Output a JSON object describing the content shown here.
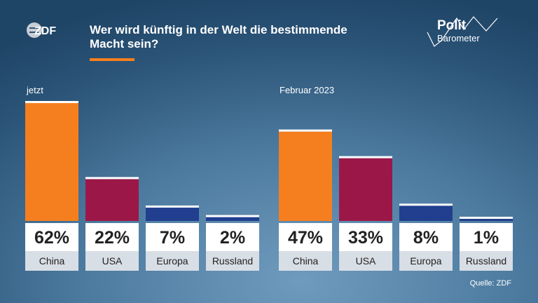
{
  "header": {
    "title_line1": "Wer wird künftig in der Welt die bestimmende",
    "title_line2": "Macht sein?",
    "zdf_logo": "ZDF",
    "brand_line1": "Polit",
    "brand_line2": "Barometer",
    "accent_color": "#f57f1e"
  },
  "source": "Quelle: ZDF",
  "chart_data": [
    {
      "type": "bar",
      "title": "jetzt",
      "categories": [
        "China",
        "USA",
        "Europa",
        "Russland"
      ],
      "values": [
        62,
        22,
        7,
        2
      ],
      "value_labels": [
        "62%",
        "22%",
        "7%",
        "2%"
      ],
      "colors": [
        "#f57f1e",
        "#9b1747",
        "#213f8e",
        "#213f8e"
      ],
      "ylim": [
        0,
        62
      ],
      "grid": false,
      "legend": "none"
    },
    {
      "type": "bar",
      "title": "Februar 2023",
      "categories": [
        "China",
        "USA",
        "Europa",
        "Russland"
      ],
      "values": [
        47,
        33,
        8,
        1
      ],
      "value_labels": [
        "47%",
        "33%",
        "8%",
        "1%"
      ],
      "colors": [
        "#f57f1e",
        "#9b1747",
        "#213f8e",
        "#213f8e"
      ],
      "ylim": [
        0,
        62
      ],
      "grid": false,
      "legend": "none"
    }
  ]
}
